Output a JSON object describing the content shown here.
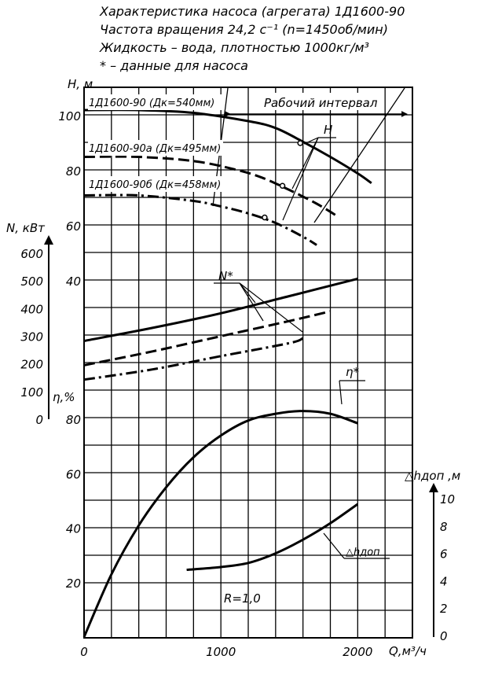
{
  "header": {
    "lines": [
      "Характеристика насоса (агрегата) 1Д1600-90",
      "Частота вращения 24,2 с⁻¹ (n=1450об/мин)",
      "Жидкость – вода, плотностью 1000кг/м³",
      "* – данные для насоса"
    ]
  },
  "chart_data": {
    "type": "line",
    "x_axis": {
      "label": "Q,м³/ч",
      "range": [
        0,
        2400
      ],
      "ticks": [
        "0",
        "1000",
        "2000"
      ]
    },
    "panels": {
      "H": {
        "axis_label": "Н, м",
        "range": [
          30,
          108
        ],
        "ticks": [
          "40",
          "60",
          "80",
          "100"
        ],
        "curve_label": "Н",
        "series": [
          {
            "name": "1Д1600-90 (Дк=540мм)",
            "style": "solid",
            "x": [
              0,
              400,
              800,
              1200,
              1400,
              1600,
              1800,
              2000,
              2100
            ],
            "y": [
              102,
              102,
              101,
              98,
              95.5,
              90.5,
              85,
              79,
              75.5
            ]
          },
          {
            "name": "1Д1600-90а (Дк=495мм)",
            "style": "dashed",
            "x": [
              0,
              400,
              800,
              1100,
              1300,
              1500,
              1700,
              1850
            ],
            "y": [
              85,
              85,
              83.5,
              80.5,
              77.5,
              73,
              68,
              63.5
            ]
          },
          {
            "name": "1Д1600-90б (Дк=458мм)",
            "style": "dashdot",
            "x": [
              0,
              400,
              800,
              1000,
              1200,
              1400,
              1600,
              1700
            ],
            "y": [
              71,
              71,
              69,
              67,
              64.5,
              61,
              56,
              53
            ]
          }
        ],
        "marked_points": [
          {
            "x": 1580,
            "y": 90
          },
          {
            "x": 1450,
            "y": 74.5
          },
          {
            "x": 1320,
            "y": 63
          }
        ],
        "working_interval_label": "Рабочий интервал"
      },
      "N": {
        "axis_label": "N, кВт",
        "range": [
          0,
          600
        ],
        "ticks": [
          "0",
          "100",
          "200",
          "300",
          "400",
          "500",
          "600"
        ],
        "curve_label": "N*",
        "series": [
          {
            "name": "1Д1600-90",
            "style": "solid",
            "x": [
              0,
              500,
              1000,
              1500,
              2000
            ],
            "y": [
              283,
              330,
              383,
              445,
              508
            ]
          },
          {
            "name": "1Д1600-90а",
            "style": "dashed",
            "x": [
              0,
              500,
              1000,
              1500,
              1800
            ],
            "y": [
              195,
              245,
              300,
              355,
              390
            ]
          },
          {
            "name": "1Д1600-90б",
            "style": "dashdot",
            "x": [
              0,
              500,
              1000,
              1500,
              1600
            ],
            "y": [
              143,
              180,
              228,
              275,
              293
            ]
          }
        ]
      },
      "eta": {
        "axis_label": "η,%",
        "range": [
          0,
          80
        ],
        "ticks": [
          "20",
          "40",
          "60",
          "80"
        ],
        "curve_label": "η*",
        "series": [
          {
            "name": "η",
            "style": "solid",
            "x": [
              0,
              200,
              400,
              600,
              800,
              1000,
              1200,
              1400,
              1600,
              1800,
              2000
            ],
            "y": [
              0,
              23,
              41,
              55,
              66,
              74,
              79.5,
              82,
              83,
              82,
              78.5
            ]
          }
        ]
      },
      "dh": {
        "axis_label": "△hдоп ,м",
        "range": [
          0,
          10
        ],
        "ticks": [
          "0",
          "2",
          "4",
          "6",
          "8",
          "10"
        ],
        "curve_label": "△hдоп",
        "series": [
          {
            "name": "△hдоп",
            "style": "solid",
            "x": [
              750,
              1000,
              1200,
              1400,
              1600,
              1800,
              2000
            ],
            "y": [
              4.8,
              5.0,
              5.3,
              6.0,
              7.0,
              8.2,
              9.6
            ]
          }
        ]
      }
    },
    "annotations": [
      "R=1,0"
    ],
    "grid": true
  }
}
